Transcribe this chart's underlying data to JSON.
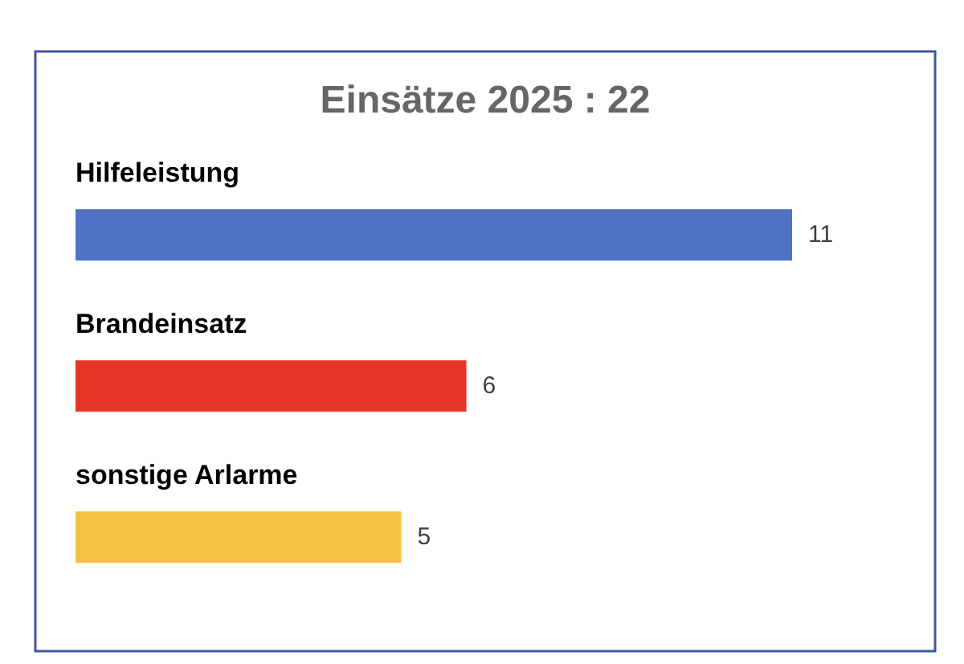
{
  "chart_data": {
    "type": "bar",
    "orientation": "horizontal",
    "title": "Einsätze 2025 : 22",
    "categories": [
      "Hilfeleistung",
      "Brandeinsatz",
      "sonstige Arlarme"
    ],
    "values": [
      11,
      6,
      5
    ],
    "colors": [
      "#4f72c4",
      "#e83424",
      "#f5c242"
    ],
    "data_labels": true
  }
}
